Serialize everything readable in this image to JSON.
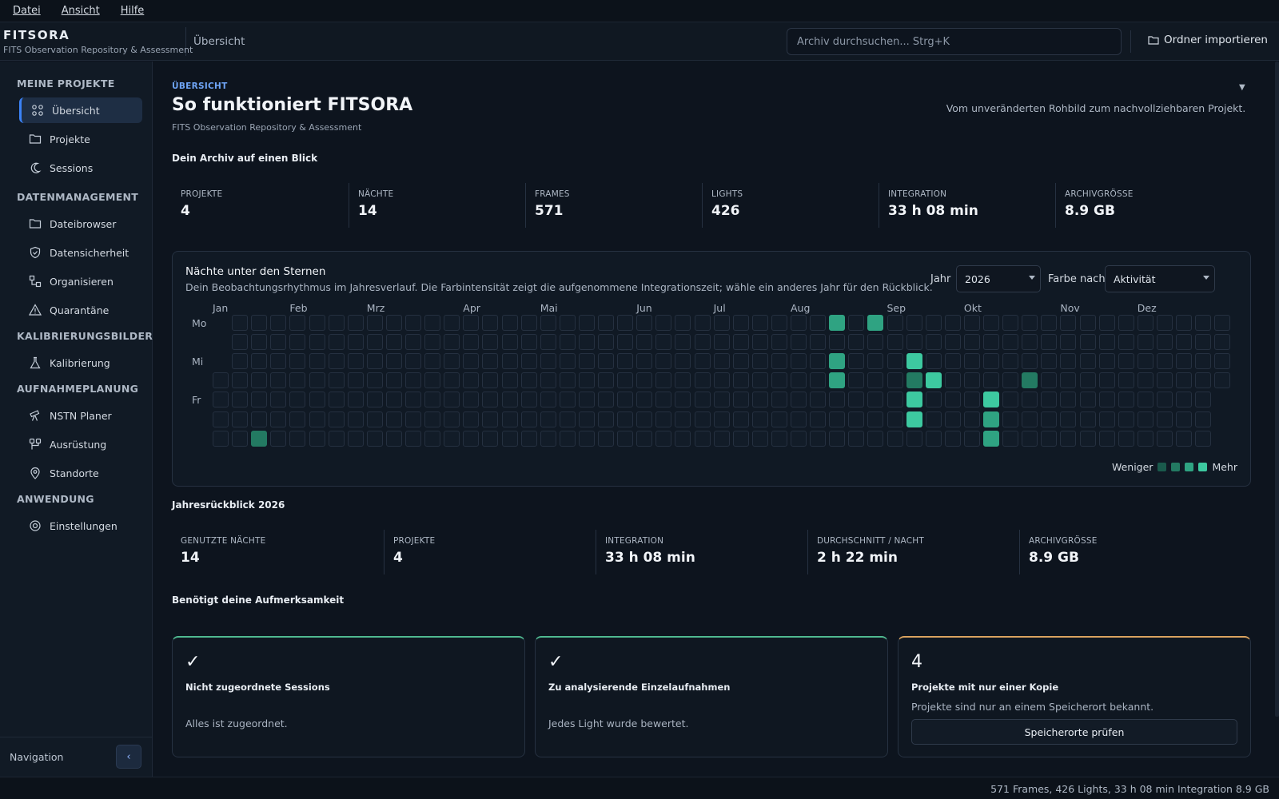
{
  "menu": [
    {
      "label": "Datei"
    },
    {
      "label": "Ansicht"
    },
    {
      "label": "Hilfe"
    }
  ],
  "brand": {
    "name": "FITSORA",
    "subtitle": "FITS Observation Repository & Assessment"
  },
  "breadcrumb": "Übersicht",
  "search": {
    "placeholder": "Archiv durchsuchen...  Strg+K"
  },
  "import_label": "Ordner importieren",
  "sidebar": {
    "sections": [
      {
        "title": "MEINE PROJEKTE",
        "items": [
          {
            "label": "Übersicht",
            "icon": "grid-icon",
            "active": true
          },
          {
            "label": "Projekte",
            "icon": "folder-icon"
          },
          {
            "label": "Sessions",
            "icon": "moon-icon"
          }
        ]
      },
      {
        "title": "DATENMANAGEMENT",
        "items": [
          {
            "label": "Dateibrowser",
            "icon": "folder-icon"
          },
          {
            "label": "Datensicherheit",
            "icon": "shield-icon"
          },
          {
            "label": "Organisieren",
            "icon": "organize-icon"
          },
          {
            "label": "Quarantäne",
            "icon": "warning-icon"
          }
        ]
      },
      {
        "title": "KALIBRIERUNGSBILDER",
        "items": [
          {
            "label": "Kalibrierung",
            "icon": "flask-icon"
          }
        ]
      },
      {
        "title": "AUFNAHMEPLANUNG",
        "items": [
          {
            "label": "NSTN Planer",
            "icon": "telescope-icon"
          },
          {
            "label": "Ausrüstung",
            "icon": "equipment-icon"
          },
          {
            "label": "Standorte",
            "icon": "location-pin-icon"
          }
        ]
      },
      {
        "title": "ANWENDUNG",
        "items": [
          {
            "label": "Einstellungen",
            "icon": "gear-icon"
          }
        ]
      }
    ],
    "footer_label": "Navigation",
    "collapse_glyph": "‹"
  },
  "page": {
    "kicker": "ÜBERSICHT",
    "title": "So funktioniert FITSORA",
    "subtitle": "FITS Observation Repository & Assessment",
    "tagline": "Vom unveränderten Rohbild zum nachvollziehbaren Projekt."
  },
  "archive": {
    "heading": "Dein Archiv auf einen Blick",
    "stats": [
      {
        "label": "PROJEKTE",
        "value": "4"
      },
      {
        "label": "NÄCHTE",
        "value": "14"
      },
      {
        "label": "FRAMES",
        "value": "571"
      },
      {
        "label": "LIGHTS",
        "value": "426"
      },
      {
        "label": "INTEGRATION",
        "value": "33 h 08 min"
      },
      {
        "label": "ARCHIVGRÖSSE",
        "value": "8.9 GB"
      }
    ]
  },
  "heatmap": {
    "title": "Nächte unter den Sternen",
    "description": "Dein Beobachtungsrhythmus im Jahresverlauf. Die Farbintensität zeigt die aufgenommene Integrationszeit; wähle ein anderes Jahr für den Rückblick.",
    "year_label": "Jahr",
    "year_value": "2026",
    "color_label": "Farbe nach",
    "color_value": "Aktivität",
    "months": [
      "Jan",
      "Feb",
      "Mrz",
      "Apr",
      "Mai",
      "Jun",
      "Jul",
      "Aug",
      "Sep",
      "Okt",
      "Nov",
      "Dez"
    ],
    "month_week_index": [
      0,
      4,
      8,
      13,
      17,
      22,
      26,
      30,
      35,
      39,
      44,
      48
    ],
    "day_labels": [
      "Mo",
      "",
      "Mi",
      "",
      "Fr",
      "",
      ""
    ],
    "first_week_start_row": 3,
    "total_days": 365,
    "active": [
      {
        "week": 2,
        "day": 6,
        "level": 2
      },
      {
        "week": 32,
        "day": 0,
        "level": 3
      },
      {
        "week": 34,
        "day": 0,
        "level": 3
      },
      {
        "week": 32,
        "day": 2,
        "level": 3
      },
      {
        "week": 36,
        "day": 2,
        "level": 4
      },
      {
        "week": 32,
        "day": 3,
        "level": 3
      },
      {
        "week": 36,
        "day": 3,
        "level": 2
      },
      {
        "week": 37,
        "day": 3,
        "level": 4
      },
      {
        "week": 42,
        "day": 3,
        "level": 2
      },
      {
        "week": 36,
        "day": 4,
        "level": 4
      },
      {
        "week": 40,
        "day": 4,
        "level": 4
      },
      {
        "week": 36,
        "day": 5,
        "level": 4
      },
      {
        "week": 40,
        "day": 5,
        "level": 3
      },
      {
        "week": 40,
        "day": 6,
        "level": 3
      }
    ],
    "legend_less": "Weniger",
    "legend_more": "Mehr",
    "colors": [
      "#1a5a4c",
      "#237a62",
      "#2fa382",
      "#3dc9a0"
    ]
  },
  "review": {
    "heading": "Jahresrückblick 2026",
    "stats": [
      {
        "label": "GENUTZTE NÄCHTE",
        "value": "14"
      },
      {
        "label": "PROJEKTE",
        "value": "4"
      },
      {
        "label": "INTEGRATION",
        "value": "33 h 08 min"
      },
      {
        "label": "DURCHSCHNITT / NACHT",
        "value": "2 h 22 min"
      },
      {
        "label": "ARCHIVGRÖSSE",
        "value": "8.9 GB"
      }
    ]
  },
  "attention": {
    "heading": "Benötigt deine Aufmerksamkeit",
    "cards": [
      {
        "big": "✓",
        "title": "Nicht zugeordnete Sessions",
        "desc": "Alles ist zugeordnet."
      },
      {
        "big": "✓",
        "title": "Zu analysierende Einzelaufnahmen",
        "desc": "Jedes Light wurde bewertet."
      },
      {
        "big": "4",
        "title": "Projekte mit nur einer Kopie",
        "desc": "Projekte sind nur an einem Speicherort bekannt.",
        "button": "Speicherorte prüfen"
      }
    ]
  },
  "status": "571 Frames, 426 Lights, 33 h 08 min Integration   8.9 GB"
}
